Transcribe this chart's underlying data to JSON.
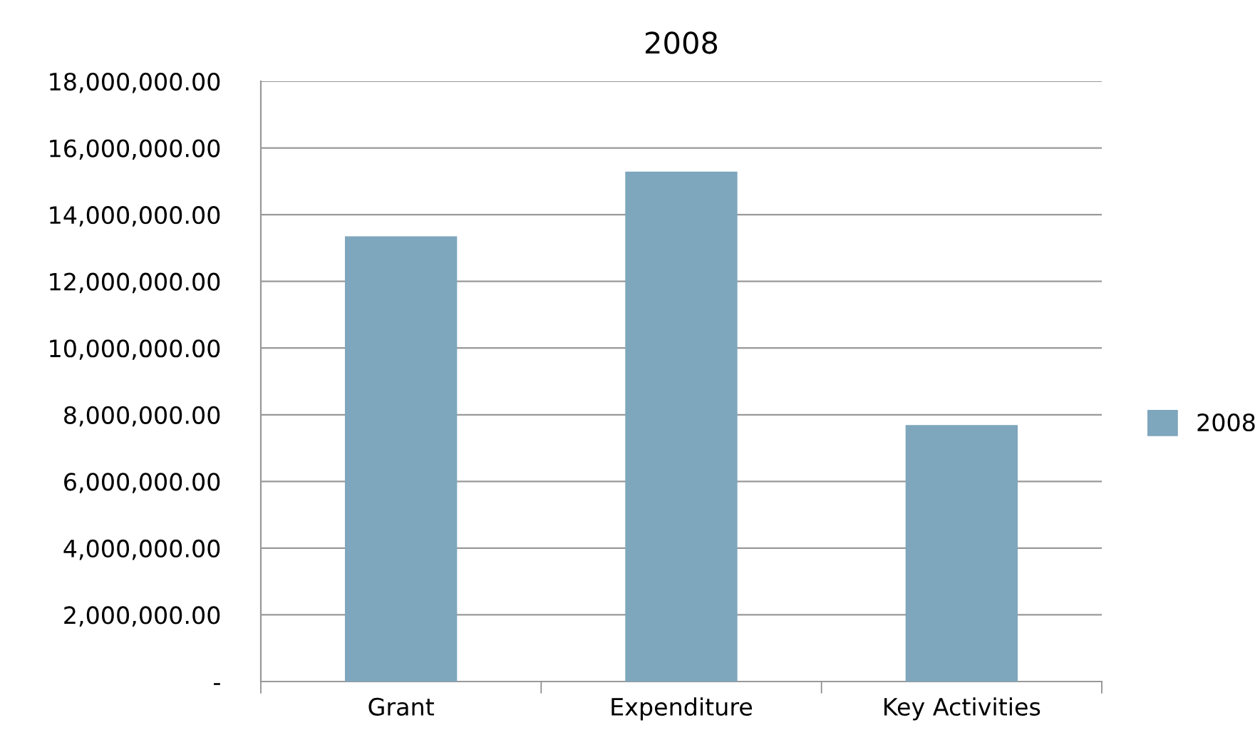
{
  "chart_data": {
    "type": "bar",
    "title": "2008",
    "categories": [
      "Grant",
      "Expenditure",
      "Key Activities"
    ],
    "series": [
      {
        "name": "2008",
        "color": "#7ea6bd",
        "values": [
          13350000,
          15290000,
          7690000
        ]
      }
    ],
    "ylim": [
      0,
      18000000
    ],
    "yticks": [
      {
        "value": 0,
        "label": "-"
      },
      {
        "value": 2000000,
        "label": "2,000,000.00"
      },
      {
        "value": 4000000,
        "label": "4,000,000.00"
      },
      {
        "value": 6000000,
        "label": "6,000,000.00"
      },
      {
        "value": 8000000,
        "label": "8,000,000.00"
      },
      {
        "value": 10000000,
        "label": "10,000,000.00"
      },
      {
        "value": 12000000,
        "label": "12,000,000.00"
      },
      {
        "value": 14000000,
        "label": "14,000,000.00"
      },
      {
        "value": 16000000,
        "label": "16,000,000.00"
      },
      {
        "value": 18000000,
        "label": "18,000,000.00"
      }
    ],
    "grid": "y",
    "legend": "right"
  }
}
